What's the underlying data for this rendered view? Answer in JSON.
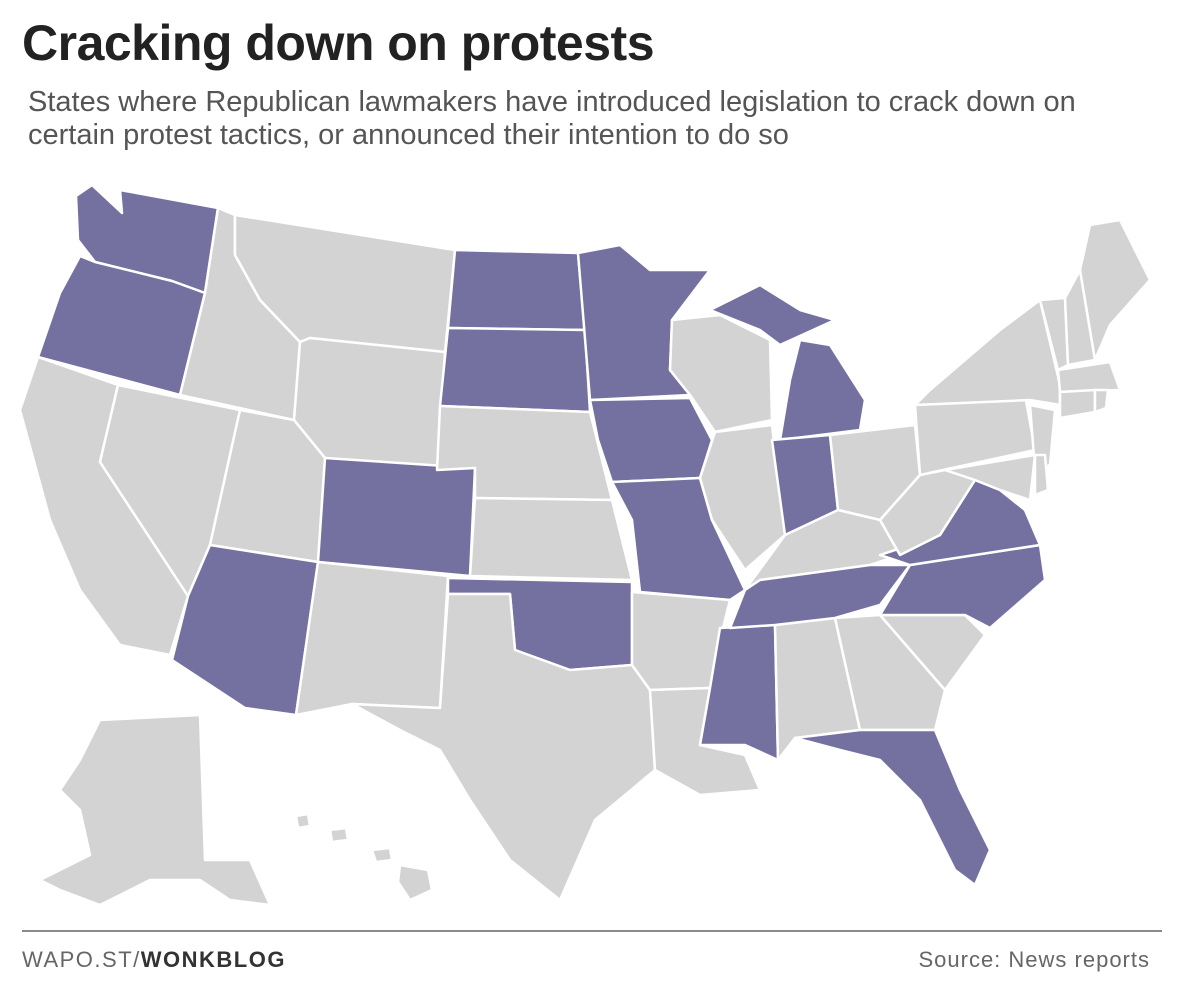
{
  "title": "Cracking down on protests",
  "subtitle": "States where Republican lawmakers have introduced legislation to crack down on certain protest tactics, or announced their intention to do so",
  "footer": {
    "credit_prefix": "WAPO.ST/",
    "credit_brand": "WONKBLOG",
    "source": "Source: News reports"
  },
  "colors": {
    "highlighted": "#7470a0",
    "other": "#d3d3d3",
    "border": "#ffffff"
  },
  "highlighted_states": [
    "Washington",
    "Oregon",
    "North Dakota",
    "South Dakota",
    "Minnesota",
    "Iowa",
    "Missouri",
    "Michigan",
    "Indiana",
    "Colorado",
    "Arizona",
    "Oklahoma",
    "Mississippi",
    "Tennessee",
    "Virginia",
    "North Carolina",
    "Florida"
  ],
  "other_states": [
    "California",
    "Nevada",
    "Idaho",
    "Montana",
    "Wyoming",
    "Utah",
    "New Mexico",
    "Texas",
    "Nebraska",
    "Kansas",
    "Arkansas",
    "Louisiana",
    "Wisconsin",
    "Illinois",
    "Kentucky",
    "Ohio",
    "Alabama",
    "Georgia",
    "South Carolina",
    "West Virginia",
    "Pennsylvania",
    "New York",
    "Maine",
    "Vermont",
    "New Hampshire",
    "Massachusetts",
    "Connecticut",
    "Rhode Island",
    "New Jersey",
    "Delaware",
    "Maryland",
    "Alaska",
    "Hawaii"
  ]
}
